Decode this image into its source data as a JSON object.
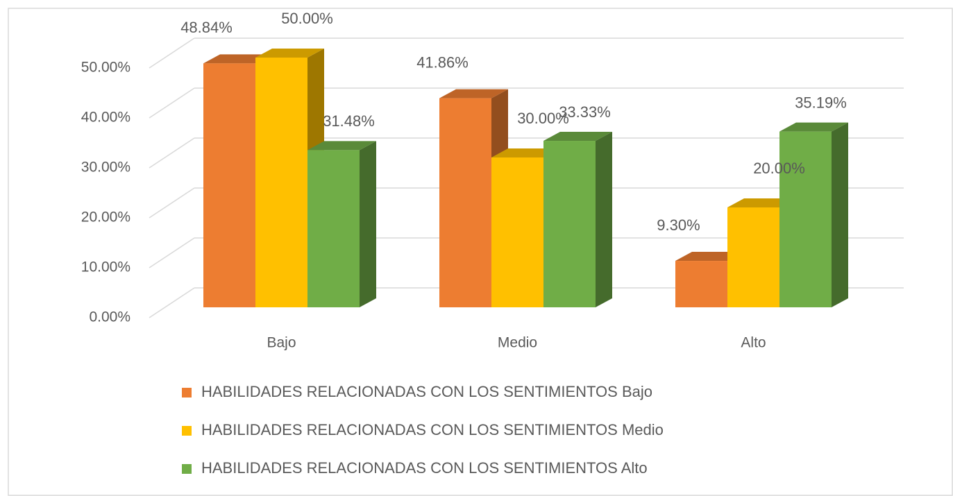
{
  "chart_data": {
    "type": "bar",
    "categories": [
      "Bajo",
      "Medio",
      "Alto"
    ],
    "series": [
      {
        "name": "HABILIDADES RELACIONADAS CON LOS SENTIMIENTOS Bajo",
        "color": "#ED7D31",
        "values": [
          48.84,
          41.86,
          9.3
        ],
        "value_labels": [
          "48.84%",
          "41.86%",
          "9.30%"
        ]
      },
      {
        "name": "HABILIDADES RELACIONADAS CON LOS SENTIMIENTOS Medio",
        "color": "#FFC000",
        "values": [
          50.0,
          30.0,
          20.0
        ],
        "value_labels": [
          "50.00%",
          "30.00%",
          "20.00%"
        ]
      },
      {
        "name": "HABILIDADES RELACIONADAS CON LOS SENTIMIENTOS Alto",
        "color": "#70AD47",
        "values": [
          31.48,
          33.33,
          35.19
        ],
        "value_labels": [
          "31.48%",
          "33.33%",
          "35.19%"
        ]
      }
    ],
    "ylim": [
      0,
      50
    ],
    "yticks": [
      {
        "value": 0,
        "label": "0.00%"
      },
      {
        "value": 10,
        "label": "10.00%"
      },
      {
        "value": 20,
        "label": "20.00%"
      },
      {
        "value": 30,
        "label": "30.00%"
      },
      {
        "value": 40,
        "label": "40.00%"
      },
      {
        "value": 50,
        "label": "50.00%"
      }
    ],
    "grid": true,
    "legend": "bottom"
  }
}
